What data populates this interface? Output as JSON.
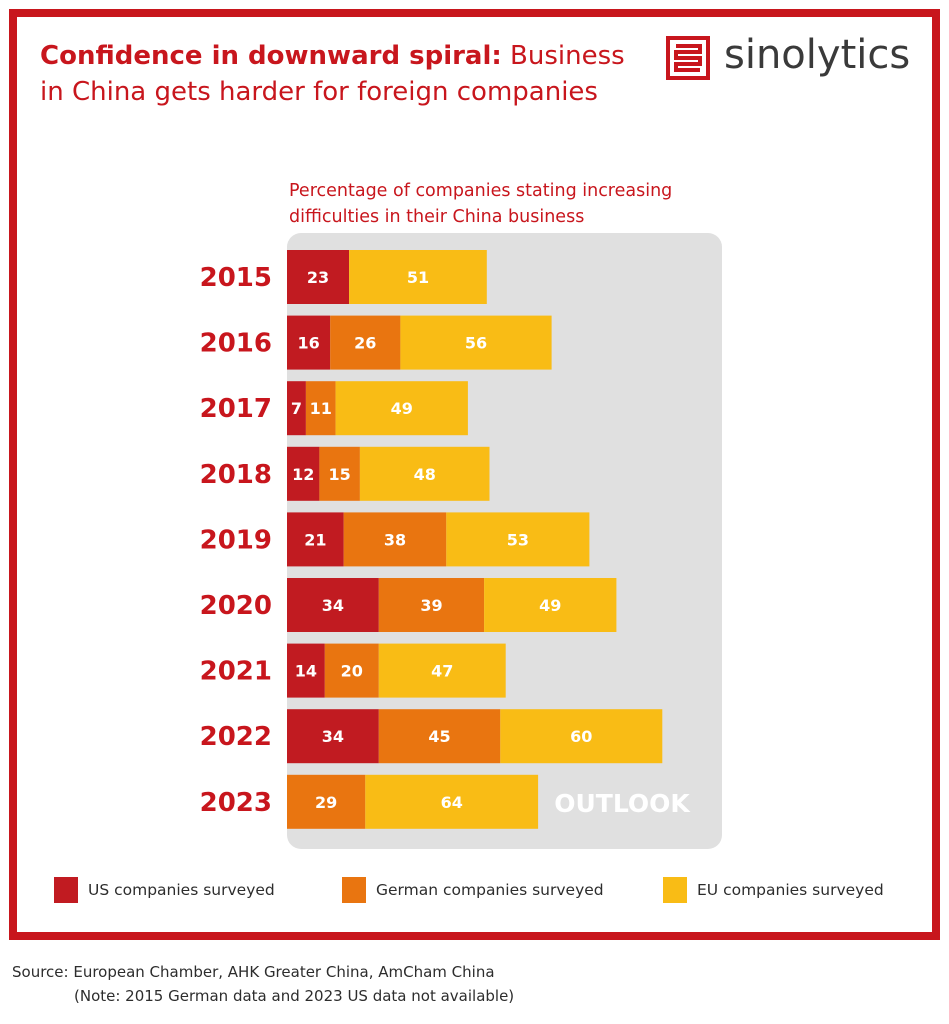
{
  "header": {
    "title_bold": "Confidence in downward spiral:",
    "title_rest": " Business in China gets harder for foreign companies",
    "logo_text": "sinolytics"
  },
  "chart_data": {
    "type": "bar",
    "stacked": true,
    "orientation": "horizontal",
    "title": "Percentage of companies stating increasing difficulties in their China business",
    "categories": [
      "2015",
      "2016",
      "2017",
      "2018",
      "2019",
      "2020",
      "2021",
      "2022",
      "2023"
    ],
    "series": [
      {
        "name": "US companies surveyed",
        "color": "#c11b21",
        "values": [
          23,
          16,
          7,
          12,
          21,
          34,
          14,
          34,
          null
        ]
      },
      {
        "name": "German companies surveyed",
        "color": "#e97510",
        "values": [
          null,
          26,
          11,
          15,
          38,
          39,
          20,
          45,
          29
        ]
      },
      {
        "name": "EU companies surveyed",
        "color": "#f9bc15",
        "values": [
          51,
          56,
          49,
          48,
          53,
          49,
          47,
          60,
          64
        ]
      }
    ],
    "annotation": "OUTLOOK",
    "xlim": [
      0,
      160
    ],
    "grid": false,
    "legend": "bottom"
  },
  "colors": {
    "brand_red": "#c8161d",
    "panel_gray": "#e0e0e0",
    "label_white": "#ffffff"
  },
  "footer": {
    "source": "Source: European Chamber, AHK Greater China, AmCham China",
    "note": "(Note: 2015 German data and 2023 US data not available)"
  }
}
